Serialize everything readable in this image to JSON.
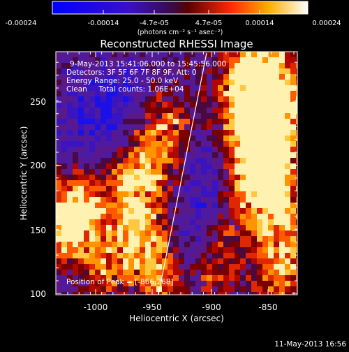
{
  "colorbar": {
    "tick_labels": [
      "-0.00024",
      "-0.00014",
      "-4.7e-05",
      "4.7e-05",
      "0.00014",
      "0.00024"
    ],
    "unit_label": "(photons cm⁻² s⁻¹ asec⁻²)"
  },
  "title": "Reconstructed RHESSI Image",
  "info": {
    "time_range": "9-May-2013 15:41:06.000 to 15:45:56.000",
    "detectors": "Detectors: 3F 5F 6F 7F 8F 9F, Att: 0",
    "energy": "Energy Range: 25.0 - 50.0 keV",
    "clean": "Clean     Total counts: 1.06E+04",
    "peak": "Position of Peak = [-866,268]"
  },
  "x_axis": {
    "label": "Heliocentric X (arcsec)",
    "ticks": [
      "-1000",
      "-950",
      "-900",
      "-850"
    ]
  },
  "y_axis": {
    "label": "Heliocentric Y (arcsec)",
    "ticks": [
      "100",
      "150",
      "200",
      "250"
    ]
  },
  "footer": {
    "timestamp": "11-May-2013 16:56"
  },
  "colors": {
    "negative": "#0000ff",
    "mid_low": "#5a1a8a",
    "mid": "#9a1000",
    "high": "#ff8a00",
    "peak": "#ffffe0"
  }
}
